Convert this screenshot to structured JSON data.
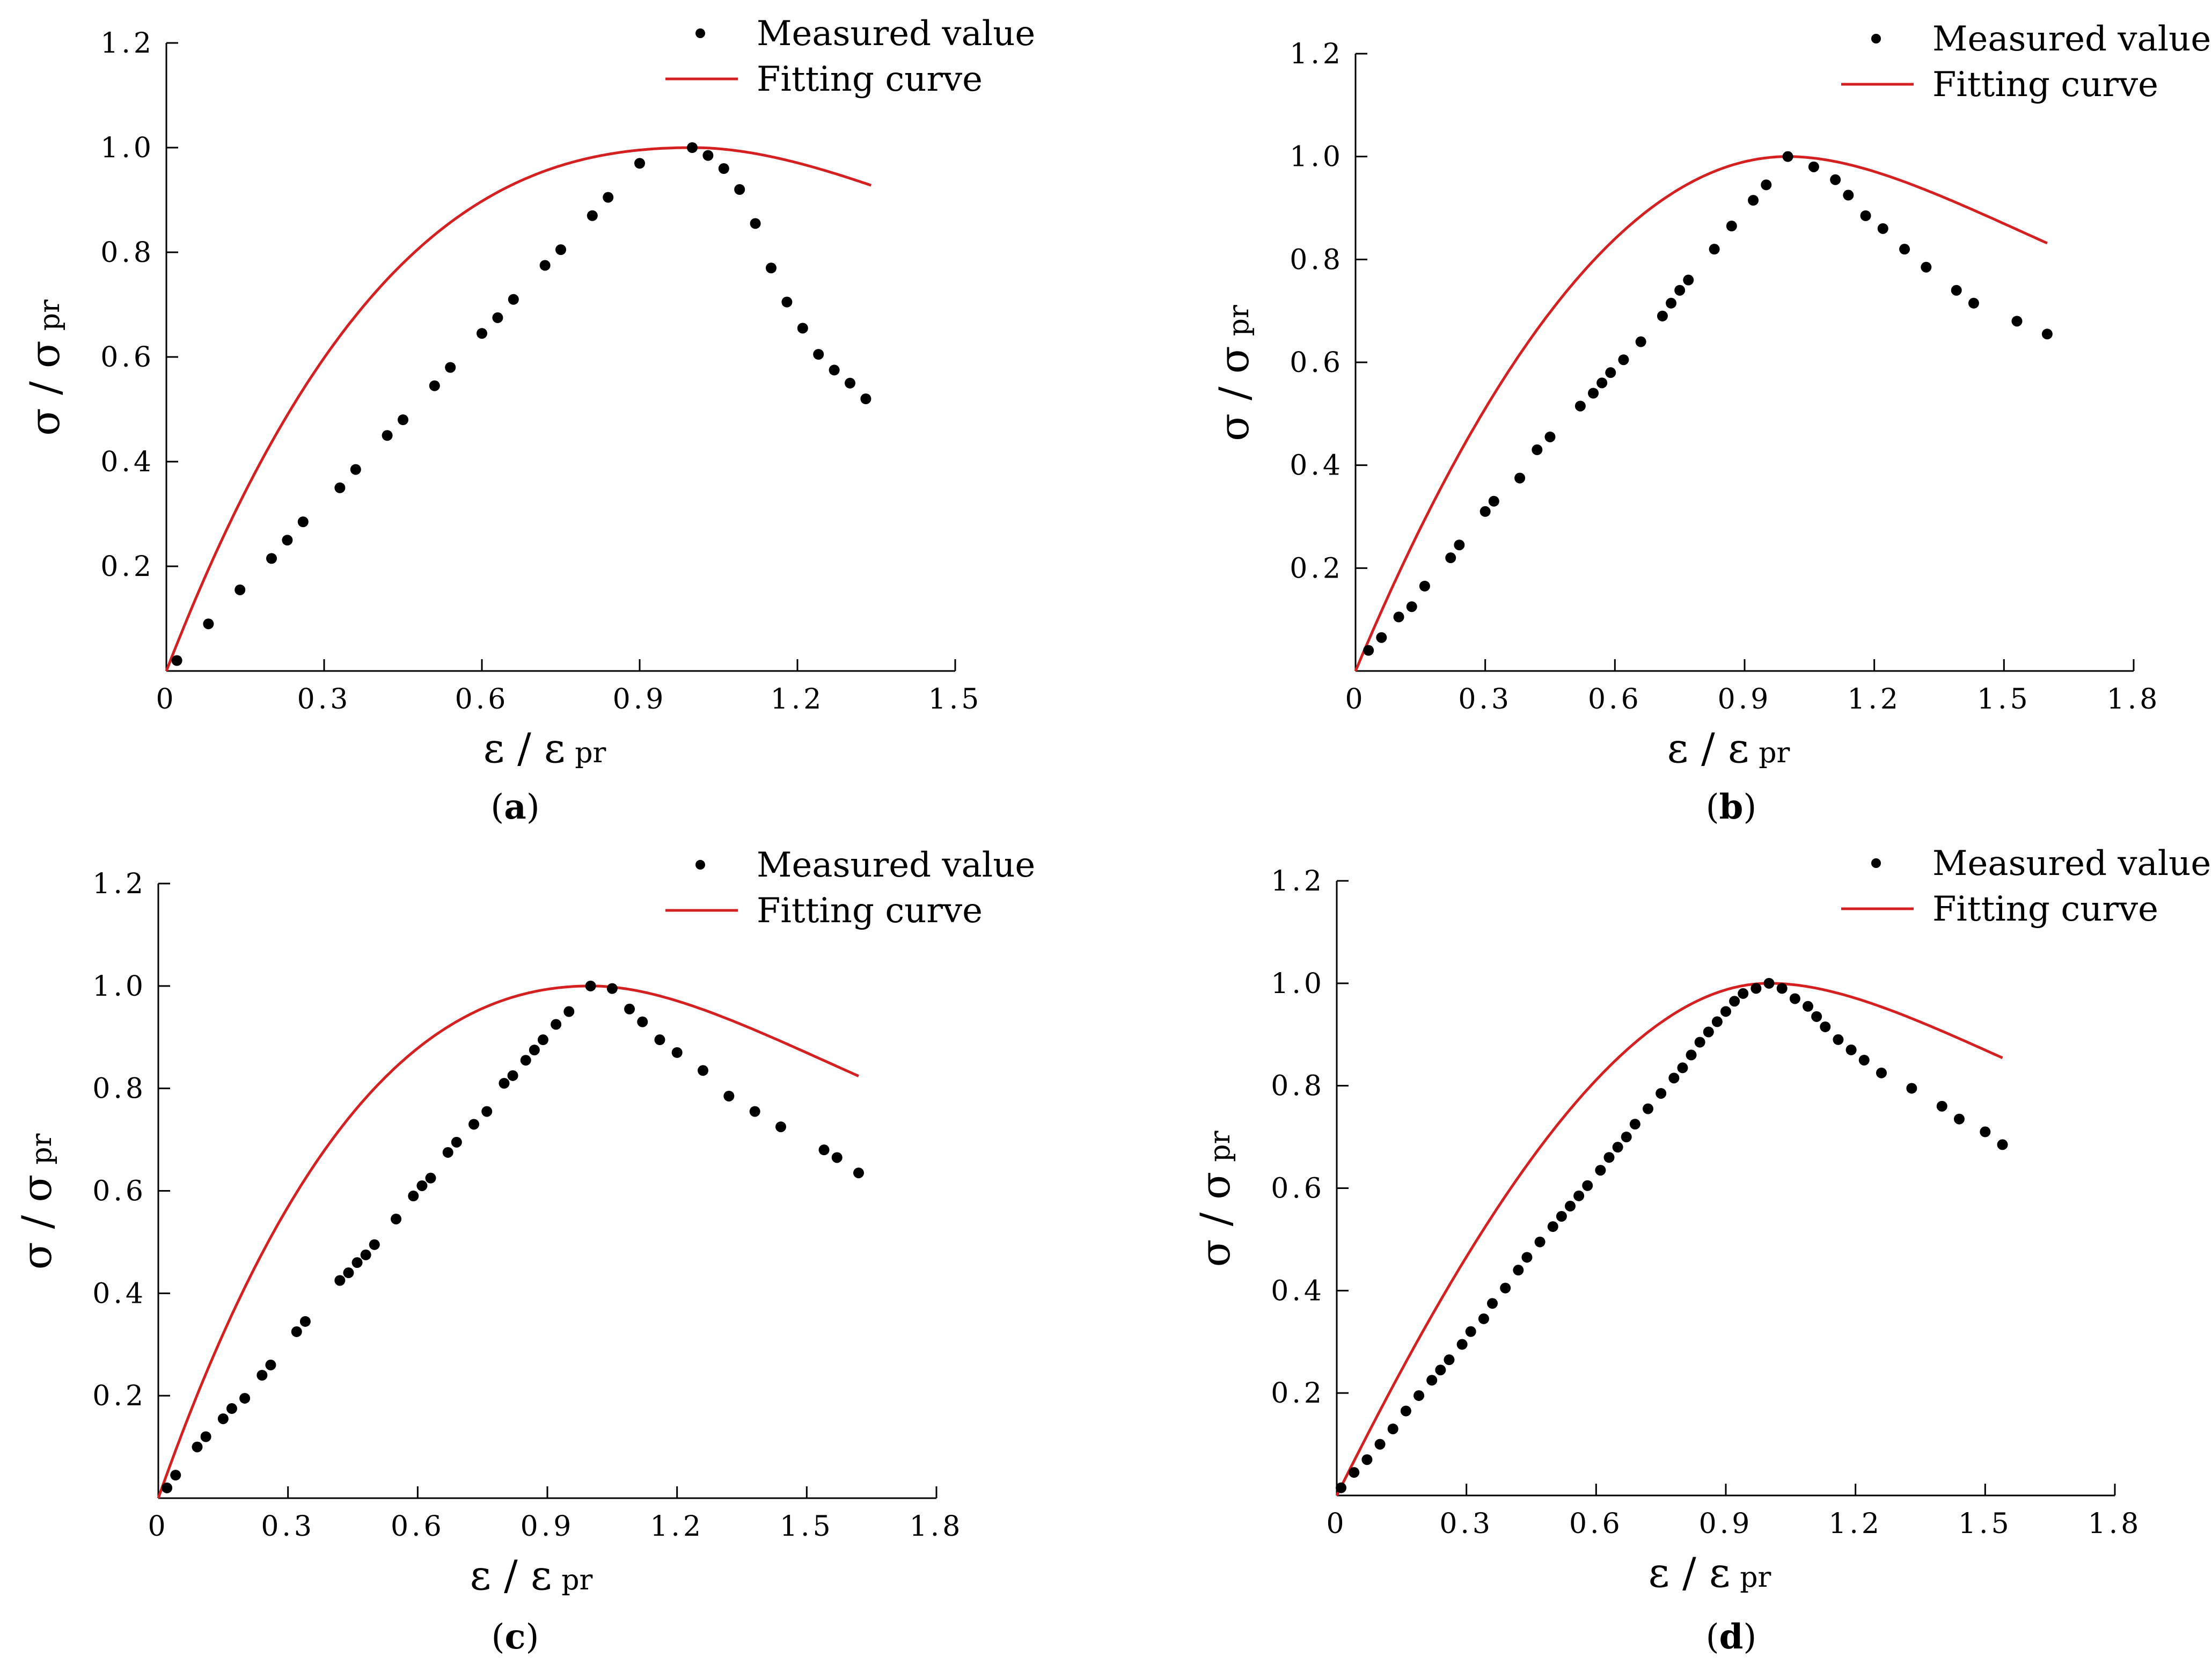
{
  "legend": {
    "measured": "Measured value",
    "fitting": "Fitting curve"
  },
  "axis_labels": {
    "x_main": "ε / ε",
    "x_sub": "pr",
    "y_main": "σ / σ",
    "y_sub": "pr"
  },
  "colors": {
    "fit": "#d42020",
    "points": "#000000",
    "axis": "#000000"
  },
  "chart_data": [
    {
      "type": "scatter",
      "panel": "a",
      "xlabel": "ε / ε pr",
      "ylabel": "σ / σ pr",
      "xlim": [
        0,
        1.5
      ],
      "ylim": [
        0,
        1.2
      ],
      "x_ticks": [
        "0",
        "0.3",
        "0.6",
        "0.9",
        "1.2",
        "1.5"
      ],
      "y_ticks": [
        "0.2",
        "0.4",
        "0.6",
        "0.8",
        "1.0",
        "1.2"
      ],
      "series": [
        {
          "name": "Measured value",
          "points": [
            [
              0.02,
              0.02
            ],
            [
              0.08,
              0.09
            ],
            [
              0.14,
              0.155
            ],
            [
              0.2,
              0.215
            ],
            [
              0.23,
              0.25
            ],
            [
              0.26,
              0.285
            ],
            [
              0.33,
              0.35
            ],
            [
              0.36,
              0.385
            ],
            [
              0.42,
              0.45
            ],
            [
              0.45,
              0.48
            ],
            [
              0.51,
              0.545
            ],
            [
              0.54,
              0.58
            ],
            [
              0.6,
              0.645
            ],
            [
              0.63,
              0.675
            ],
            [
              0.66,
              0.71
            ],
            [
              0.72,
              0.775
            ],
            [
              0.75,
              0.805
            ],
            [
              0.81,
              0.87
            ],
            [
              0.84,
              0.905
            ],
            [
              0.9,
              0.97
            ],
            [
              1.0,
              1.0
            ],
            [
              1.03,
              0.985
            ],
            [
              1.06,
              0.96
            ],
            [
              1.09,
              0.92
            ],
            [
              1.12,
              0.855
            ],
            [
              1.15,
              0.77
            ],
            [
              1.18,
              0.705
            ],
            [
              1.21,
              0.655
            ],
            [
              1.24,
              0.605
            ],
            [
              1.27,
              0.575
            ],
            [
              1.3,
              0.55
            ],
            [
              1.33,
              0.52
            ]
          ]
        },
        {
          "name": "Fitting curve",
          "params": {
            "alpha": 2.6,
            "xmax": 1.34
          }
        }
      ]
    },
    {
      "type": "scatter",
      "panel": "b",
      "xlabel": "ε / ε pr",
      "ylabel": "σ / σ pr",
      "xlim": [
        0,
        1.8
      ],
      "ylim": [
        0,
        1.2
      ],
      "x_ticks": [
        "0",
        "0.3",
        "0.6",
        "0.9",
        "1.2",
        "1.5",
        "1.8"
      ],
      "y_ticks": [
        "0.2",
        "0.4",
        "0.6",
        "0.8",
        "1.0",
        "1.2"
      ],
      "series": [
        {
          "name": "Measured value",
          "points": [
            [
              0.03,
              0.04
            ],
            [
              0.06,
              0.065
            ],
            [
              0.1,
              0.105
            ],
            [
              0.13,
              0.125
            ],
            [
              0.16,
              0.165
            ],
            [
              0.22,
              0.22
            ],
            [
              0.24,
              0.245
            ],
            [
              0.3,
              0.31
            ],
            [
              0.32,
              0.33
            ],
            [
              0.38,
              0.375
            ],
            [
              0.42,
              0.43
            ],
            [
              0.45,
              0.455
            ],
            [
              0.52,
              0.515
            ],
            [
              0.55,
              0.54
            ],
            [
              0.57,
              0.56
            ],
            [
              0.59,
              0.58
            ],
            [
              0.62,
              0.605
            ],
            [
              0.66,
              0.64
            ],
            [
              0.71,
              0.69
            ],
            [
              0.73,
              0.715
            ],
            [
              0.75,
              0.74
            ],
            [
              0.77,
              0.76
            ],
            [
              0.83,
              0.82
            ],
            [
              0.87,
              0.865
            ],
            [
              0.92,
              0.915
            ],
            [
              0.95,
              0.945
            ],
            [
              1.0,
              1.0
            ],
            [
              1.06,
              0.98
            ],
            [
              1.11,
              0.955
            ],
            [
              1.14,
              0.925
            ],
            [
              1.18,
              0.885
            ],
            [
              1.22,
              0.86
            ],
            [
              1.27,
              0.82
            ],
            [
              1.32,
              0.785
            ],
            [
              1.39,
              0.74
            ],
            [
              1.43,
              0.715
            ],
            [
              1.53,
              0.68
            ],
            [
              1.6,
              0.655
            ]
          ]
        },
        {
          "name": "Fitting curve",
          "params": {
            "alpha": 2.0,
            "xmax": 1.6
          }
        }
      ]
    },
    {
      "type": "scatter",
      "panel": "c",
      "xlabel": "ε / ε pr",
      "ylabel": "σ / σ pr",
      "xlim": [
        0,
        1.8
      ],
      "ylim": [
        0,
        1.2
      ],
      "x_ticks": [
        "0",
        "0.3",
        "0.6",
        "0.9",
        "1.2",
        "1.5",
        "1.8"
      ],
      "y_ticks": [
        "0.2",
        "0.4",
        "0.6",
        "0.8",
        "1.0",
        "1.2"
      ],
      "series": [
        {
          "name": "Measured value",
          "points": [
            [
              0.02,
              0.02
            ],
            [
              0.04,
              0.045
            ],
            [
              0.09,
              0.1
            ],
            [
              0.11,
              0.12
            ],
            [
              0.15,
              0.155
            ],
            [
              0.17,
              0.175
            ],
            [
              0.2,
              0.195
            ],
            [
              0.24,
              0.24
            ],
            [
              0.26,
              0.26
            ],
            [
              0.32,
              0.325
            ],
            [
              0.34,
              0.345
            ],
            [
              0.42,
              0.425
            ],
            [
              0.44,
              0.44
            ],
            [
              0.46,
              0.46
            ],
            [
              0.48,
              0.475
            ],
            [
              0.5,
              0.495
            ],
            [
              0.55,
              0.545
            ],
            [
              0.59,
              0.59
            ],
            [
              0.61,
              0.61
            ],
            [
              0.63,
              0.625
            ],
            [
              0.67,
              0.675
            ],
            [
              0.69,
              0.695
            ],
            [
              0.73,
              0.73
            ],
            [
              0.76,
              0.755
            ],
            [
              0.8,
              0.81
            ],
            [
              0.82,
              0.825
            ],
            [
              0.85,
              0.855
            ],
            [
              0.87,
              0.875
            ],
            [
              0.89,
              0.895
            ],
            [
              0.92,
              0.925
            ],
            [
              0.95,
              0.95
            ],
            [
              1.0,
              1.0
            ],
            [
              1.05,
              0.995
            ],
            [
              1.09,
              0.955
            ],
            [
              1.12,
              0.93
            ],
            [
              1.16,
              0.895
            ],
            [
              1.2,
              0.87
            ],
            [
              1.26,
              0.835
            ],
            [
              1.32,
              0.785
            ],
            [
              1.38,
              0.755
            ],
            [
              1.44,
              0.725
            ],
            [
              1.54,
              0.68
            ],
            [
              1.57,
              0.665
            ],
            [
              1.62,
              0.635
            ]
          ]
        },
        {
          "name": "Fitting curve",
          "params": {
            "alpha": 2.4,
            "xmax": 1.62
          }
        }
      ]
    },
    {
      "type": "scatter",
      "panel": "d",
      "xlabel": "ε / ε pr",
      "ylabel": "σ / σ pr",
      "xlim": [
        0,
        1.8
      ],
      "ylim": [
        0,
        1.2
      ],
      "x_ticks": [
        "0",
        "0.3",
        "0.6",
        "0.9",
        "1.2",
        "1.5",
        "1.8"
      ],
      "y_ticks": [
        "0.2",
        "0.4",
        "0.6",
        "0.8",
        "1.0",
        "1.2"
      ],
      "series": [
        {
          "name": "Measured value",
          "points": [
            [
              0.01,
              0.015
            ],
            [
              0.04,
              0.045
            ],
            [
              0.07,
              0.07
            ],
            [
              0.1,
              0.1
            ],
            [
              0.13,
              0.13
            ],
            [
              0.16,
              0.165
            ],
            [
              0.19,
              0.195
            ],
            [
              0.22,
              0.225
            ],
            [
              0.24,
              0.245
            ],
            [
              0.26,
              0.265
            ],
            [
              0.29,
              0.295
            ],
            [
              0.31,
              0.32
            ],
            [
              0.34,
              0.345
            ],
            [
              0.36,
              0.375
            ],
            [
              0.39,
              0.405
            ],
            [
              0.42,
              0.44
            ],
            [
              0.44,
              0.465
            ],
            [
              0.47,
              0.495
            ],
            [
              0.5,
              0.525
            ],
            [
              0.52,
              0.545
            ],
            [
              0.54,
              0.565
            ],
            [
              0.56,
              0.585
            ],
            [
              0.58,
              0.605
            ],
            [
              0.61,
              0.635
            ],
            [
              0.63,
              0.66
            ],
            [
              0.65,
              0.68
            ],
            [
              0.67,
              0.7
            ],
            [
              0.69,
              0.725
            ],
            [
              0.72,
              0.755
            ],
            [
              0.75,
              0.785
            ],
            [
              0.78,
              0.815
            ],
            [
              0.8,
              0.835
            ],
            [
              0.82,
              0.86
            ],
            [
              0.84,
              0.885
            ],
            [
              0.86,
              0.905
            ],
            [
              0.88,
              0.925
            ],
            [
              0.9,
              0.945
            ],
            [
              0.92,
              0.965
            ],
            [
              0.94,
              0.98
            ],
            [
              0.97,
              0.99
            ],
            [
              1.0,
              1.0
            ],
            [
              1.03,
              0.99
            ],
            [
              1.06,
              0.97
            ],
            [
              1.09,
              0.955
            ],
            [
              1.11,
              0.935
            ],
            [
              1.13,
              0.915
            ],
            [
              1.16,
              0.89
            ],
            [
              1.19,
              0.87
            ],
            [
              1.22,
              0.85
            ],
            [
              1.26,
              0.825
            ],
            [
              1.33,
              0.795
            ],
            [
              1.4,
              0.76
            ],
            [
              1.44,
              0.735
            ],
            [
              1.5,
              0.71
            ],
            [
              1.54,
              0.685
            ]
          ]
        },
        {
          "name": "Fitting curve",
          "params": {
            "alpha": 1.7,
            "xmax": 1.54
          }
        }
      ]
    }
  ],
  "panels": [
    {
      "label_open": "(",
      "label_letter": "a",
      "label_close": ")"
    },
    {
      "label_open": "(",
      "label_letter": "b",
      "label_close": ")"
    },
    {
      "label_open": "(",
      "label_letter": "c",
      "label_close": ")"
    },
    {
      "label_open": "(",
      "label_letter": "d",
      "label_close": ")"
    }
  ]
}
